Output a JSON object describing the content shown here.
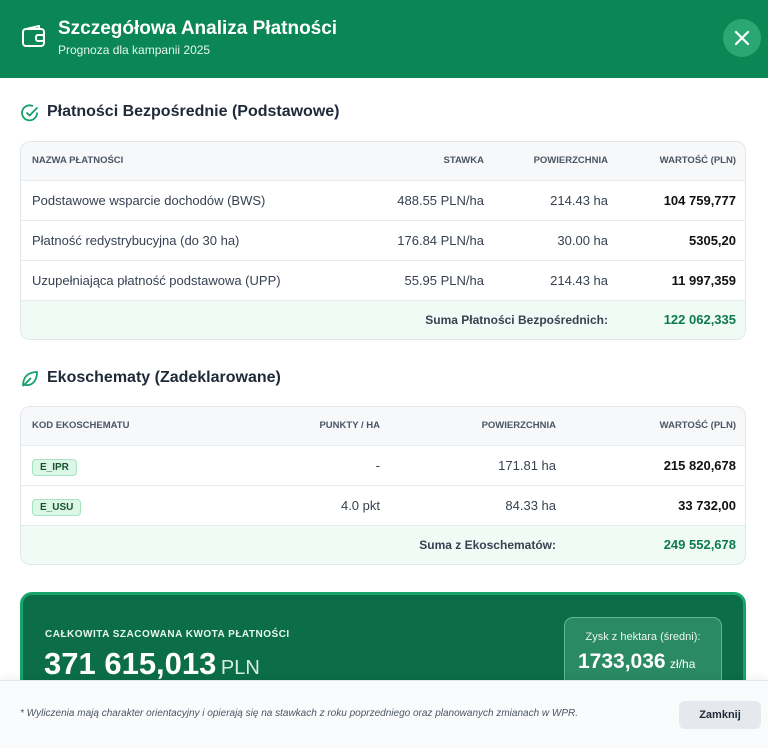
{
  "header": {
    "title": "Szczegółowa Analiza Płatności",
    "subtitle": "Prognoza dla kampanii 2025"
  },
  "direct_payments": {
    "title": "Płatności Bezpośrednie (Podstawowe)",
    "columns": [
      "NAZWA PŁATNOŚCI",
      "STAWKA",
      "POWIERZCHNIA",
      "WARTOŚĆ (PLN)"
    ],
    "rows": [
      [
        "Podstawowe wsparcie dochodów (BWS)",
        "488.55 PLN/ha",
        "214.43 ha",
        "104 759,777"
      ],
      [
        "Płatność redystrybucyjna (do 30 ha)",
        "176.84 PLN/ha",
        "30.00 ha",
        "5305,20"
      ],
      [
        "Uzupełniająca płatność podstawowa (UPP)",
        "55.95 PLN/ha",
        "214.43 ha",
        "11 997,359"
      ]
    ],
    "total_label": "Suma Płatności Bezpośrednich:",
    "total_value": "122 062,335"
  },
  "eco_schemes": {
    "title": "Ekoschematy (Zadeklarowane)",
    "columns": [
      "KOD EKOSCHEMATU",
      "PUNKTY / HA",
      "POWIERZCHNIA",
      "WARTOŚĆ (PLN)"
    ],
    "rows": [
      [
        "E_IPR",
        "-",
        "171.81 ha",
        "215 820,678"
      ],
      [
        "E_USU",
        "4.0 pkt",
        "84.33 ha",
        "33 732,00"
      ]
    ],
    "total_label": "Suma z Ekoschematów:",
    "total_value": "249 552,678"
  },
  "summary": {
    "label": "CAŁKOWITA SZACOWANA KWOTA PŁATNOŚCI",
    "amount": "371 615,013",
    "currency": "PLN",
    "per_ha_label": "Zysk z hektara (średni):",
    "per_ha_value": "1733,036",
    "per_ha_unit": "zł/ha"
  },
  "footer": {
    "note": "* Wyliczenia mają charakter orientacyjny i opierają się na stawkach z roku poprzedniego oraz planowanych zmianach w WPR.",
    "close_button": "Zamknij"
  }
}
